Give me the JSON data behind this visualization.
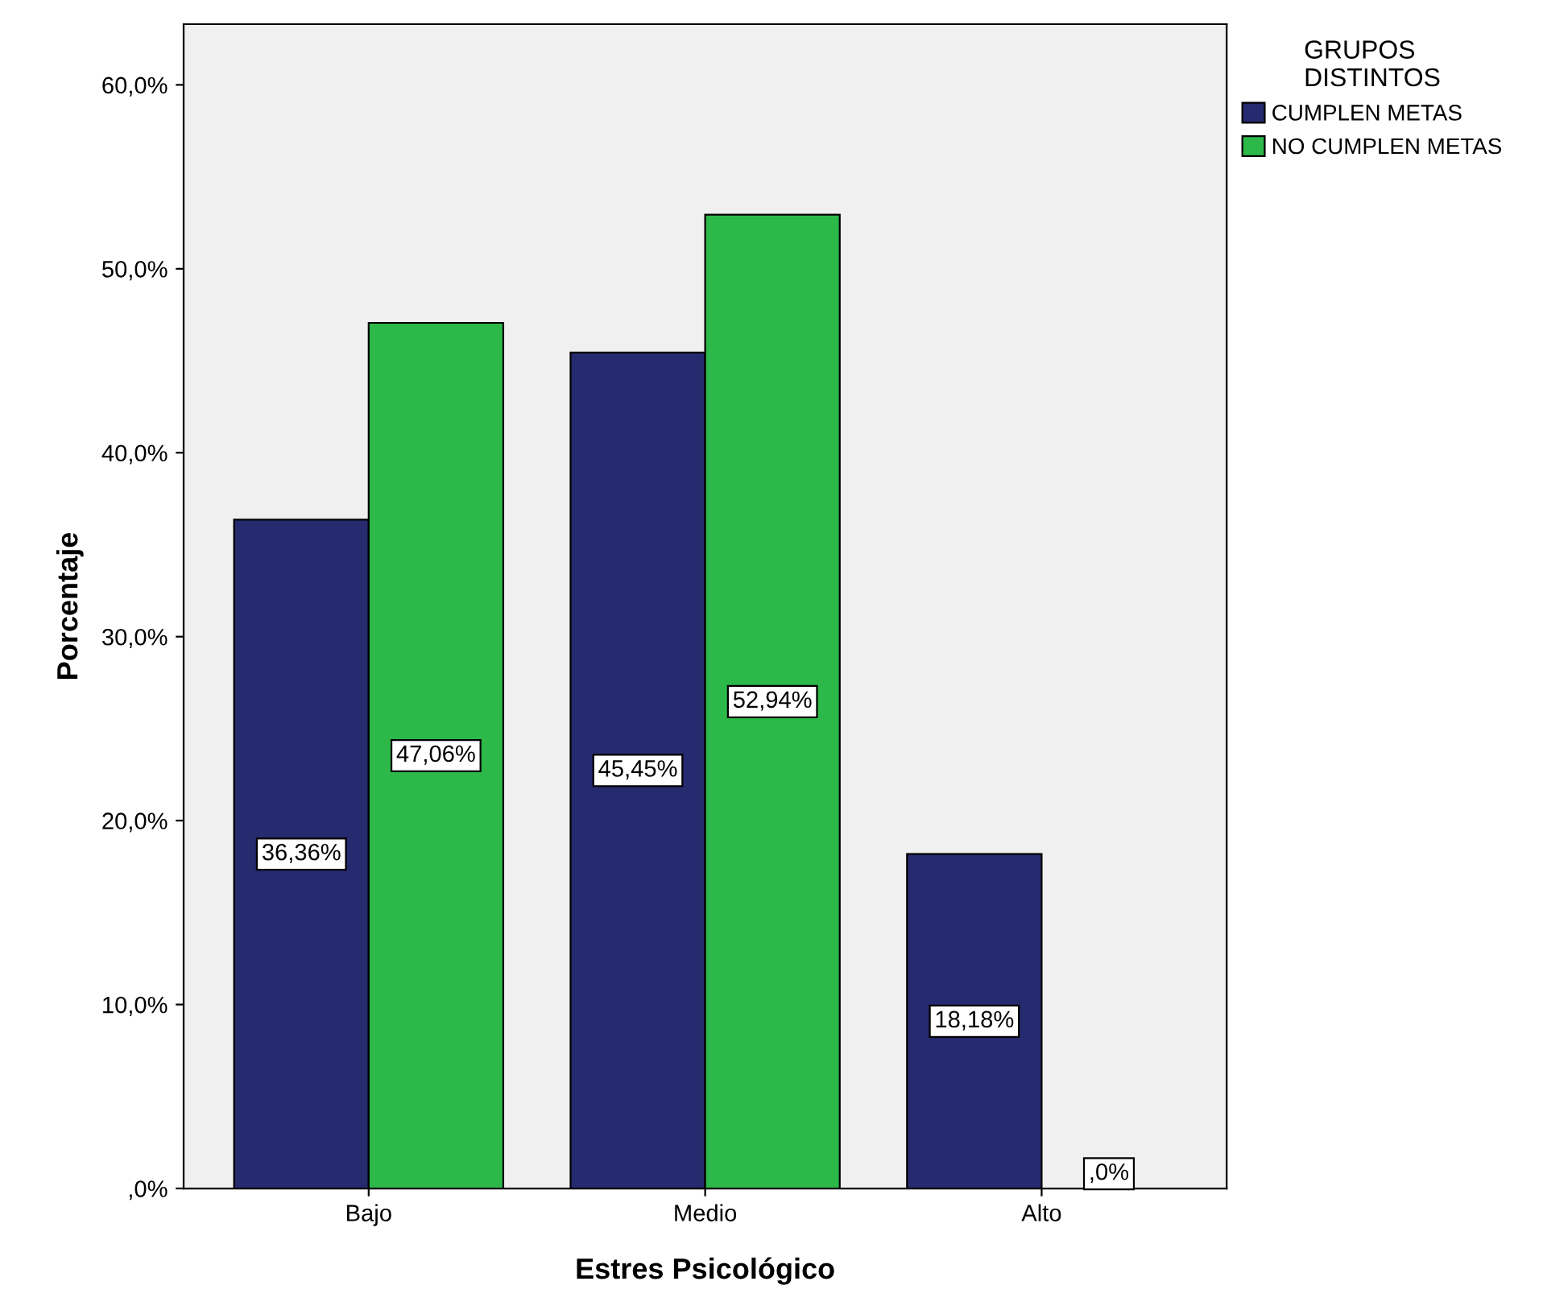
{
  "chart_data": {
    "type": "bar",
    "xlabel": "Estres Psicológico",
    "ylabel": "Porcentaje",
    "legend_title": "GRUPOS\nDISTINTOS",
    "legend": "top right",
    "categories": [
      "Bajo",
      "Medio",
      "Alto"
    ],
    "series": [
      {
        "name": "CUMPLEN METAS",
        "color": "#262a6e",
        "values": [
          36.36,
          45.45,
          18.18
        ],
        "value_labels": [
          "36,36%",
          "45,45%",
          "18,18%"
        ]
      },
      {
        "name": "NO CUMPLEN METAS",
        "color": "#2db84a",
        "values": [
          47.06,
          52.94,
          0
        ],
        "value_labels": [
          "47,06%",
          "52,94%",
          ",0%"
        ]
      }
    ],
    "ylim": [
      0,
      63.3
    ],
    "yticks": [
      {
        "value": 0,
        "label": ",0%"
      },
      {
        "value": 10,
        "label": "10,0%"
      },
      {
        "value": 20,
        "label": "20,0%"
      },
      {
        "value": 30,
        "label": "30,0%"
      },
      {
        "value": 40,
        "label": "40,0%"
      },
      {
        "value": 50,
        "label": "50,0%"
      },
      {
        "value": 60,
        "label": "60,0%"
      }
    ],
    "grid": false
  }
}
